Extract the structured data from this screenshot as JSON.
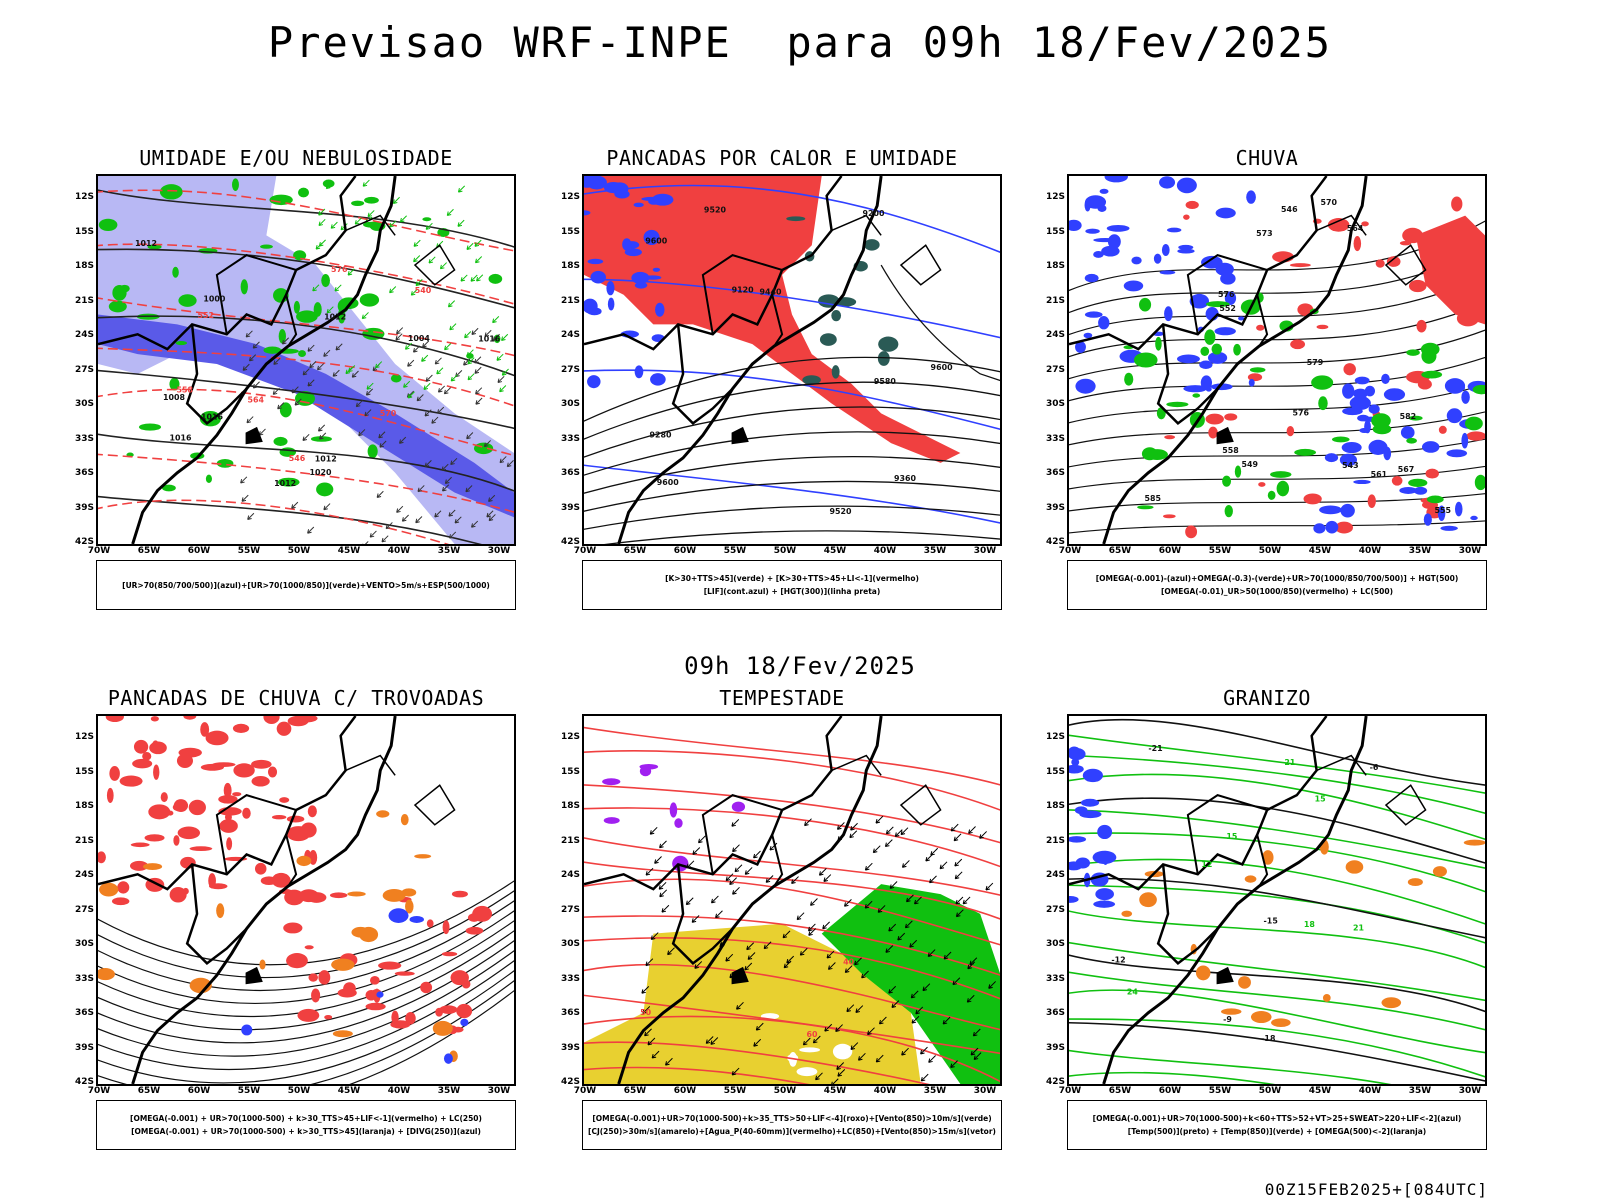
{
  "header": {
    "title": "Previsao WRF-INPE  para 09h 18/Fev/2025",
    "mid_date": "09h 18/Fev/2025",
    "footer": "00Z15FEB2025+[084UTC]"
  },
  "axes": {
    "lat_labels": [
      "12S",
      "15S",
      "18S",
      "21S",
      "24S",
      "27S",
      "30S",
      "33S",
      "36S",
      "39S",
      "42S"
    ],
    "lon_labels": [
      "70W",
      "65W",
      "60W",
      "55W",
      "50W",
      "45W",
      "40W",
      "35W",
      "30W"
    ]
  },
  "colors": {
    "red": "#f04040",
    "blue": "#3040ff",
    "green": "#10c010",
    "lavender": "#b8b8f4",
    "navy": "#5a5ae8",
    "yellow": "#e8d030",
    "purple": "#a020f0",
    "orange": "#f08020",
    "teal": "#2a5a55"
  },
  "panels": [
    {
      "title": "UMIDADE E/OU NEBULOSIDADE",
      "legend": [
        "[UR>70(850/700/500)](azul)+[UR>70(1000/850)](verde)+VENTO>5m/s+ESP(500/1000)"
      ],
      "map_labels": [
        "1012",
        "1012",
        "1012",
        "1012",
        "1016",
        "1016",
        "1020",
        "1008",
        "1004",
        "1000",
        "1016",
        "576",
        "570",
        "564",
        "558",
        "552",
        "546",
        "540"
      ]
    },
    {
      "title": "PANCADAS POR CALOR E UMIDADE",
      "legend": [
        "[K>30+TTS>45](verde) + [K>30+TTS>45+LI<-1](vermelho)",
        "[LIF](cont.azul) + [HGT(300)](linha preta)"
      ],
      "map_labels": [
        "9580",
        "9600",
        "9600",
        "9520",
        "9440",
        "9360",
        "9280",
        "9200",
        "9120",
        "9520",
        "9600"
      ]
    },
    {
      "title": "CHUVA",
      "legend": [
        "[OMEGA(-0.001)-(azul)+OMEGA(-0.3)-(verde)+UR>70(1000/850/700/500)] + HGT(500)",
        "[OMEGA(-0.01)_UR>50(1000/850)(vermelho) + LC(500)"
      ],
      "map_labels": [
        "585",
        "582",
        "579",
        "576",
        "573",
        "570",
        "567",
        "564",
        "561",
        "558",
        "555",
        "552",
        "549",
        "546",
        "543",
        "576"
      ]
    },
    {
      "title": "PANCADAS DE CHUVA C/ TROVOADAS",
      "legend": [
        "[OMEGA(-0.001) + UR>70(1000-500) + k>30_TTS>45+LIF<-1](vermelho) + LC(250)",
        "[OMEGA(-0.001) + UR>70(1000-500) + k>30_TTS>45](laranja) + [DIVG(250)](azul)"
      ],
      "map_labels": []
    },
    {
      "title": "TEMPESTADE",
      "legend": [
        "[OMEGA(-0.001)+UR>70(1000-500)+k>35_TTS>50+LIF<-4](roxo)+[Vento(850)>10m/s](verde)",
        "[CJ(250)>30m/s](amarelo)+[Agua_P(40-60mm)](vermelho)+LC(850)+[Vento(850)>15m/s](vetor)"
      ],
      "map_labels": [
        "40",
        "50",
        "60"
      ]
    },
    {
      "title": "GRANIZO",
      "legend": [
        "[OMEGA(-0.001)+UR>70(1000-500)+k<60+TTS>52+VT>25+SWEAT>220+LIF<-2](azul)",
        "[Temp(500)](preto) + [Temp(850)](verde) + [OMEGA(500)<-2](laranja)"
      ],
      "map_labels": [
        "21",
        "18",
        "15",
        "12",
        "-6",
        "-9",
        "-12",
        "-15",
        "-18",
        "-21",
        "24",
        "21",
        "15"
      ]
    }
  ]
}
